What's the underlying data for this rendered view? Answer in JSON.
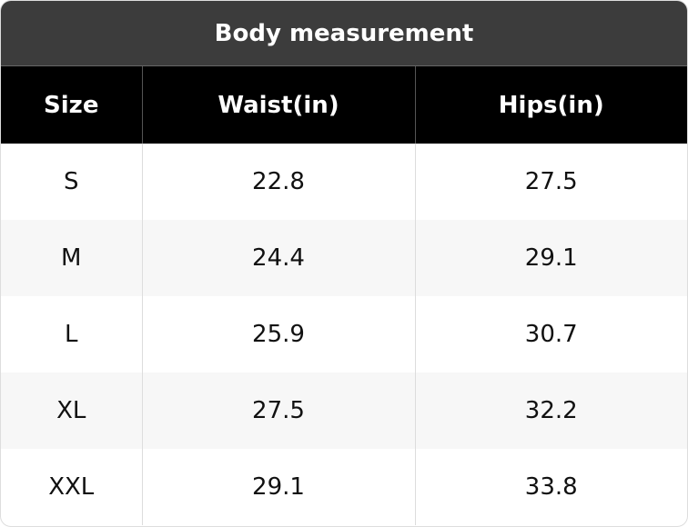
{
  "table": {
    "title": "Body measurement",
    "header": [
      "Size",
      "Waist(in)",
      "Hips(in)"
    ],
    "rows": [
      [
        "S",
        22.8,
        27.5
      ],
      [
        "M",
        24.4,
        29.1
      ],
      [
        "L",
        25.9,
        30.7
      ],
      [
        "XL",
        27.5,
        32.2
      ],
      [
        "XXL",
        29.1,
        33.8
      ]
    ]
  }
}
